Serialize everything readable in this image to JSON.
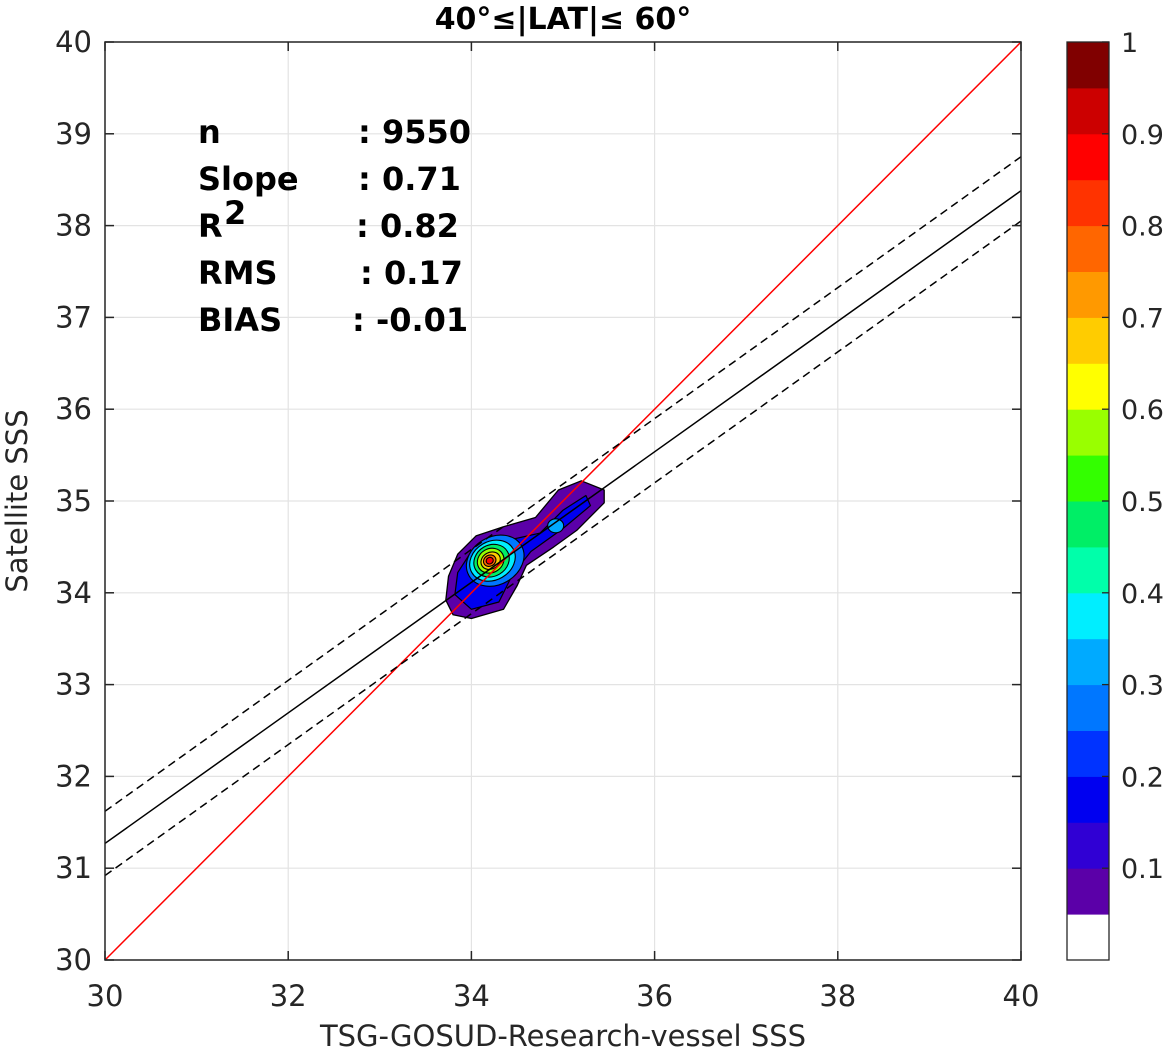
{
  "chart_data": {
    "type": "contour-scatter",
    "title": "40°≤|LAT|≤ 60°",
    "xlabel": "TSG-GOSUD-Research-vessel SSS",
    "ylabel": "Satellite SSS",
    "xlim": [
      30,
      40
    ],
    "ylim": [
      30,
      40
    ],
    "xticks": [
      "30",
      "32",
      "34",
      "36",
      "38",
      "40"
    ],
    "yticks": [
      "30",
      "31",
      "32",
      "33",
      "34",
      "35",
      "36",
      "37",
      "38",
      "39",
      "40"
    ],
    "grid": true,
    "stats": [
      {
        "label": "n",
        "value": ": 9550"
      },
      {
        "label": "Slope",
        "value": ": 0.71"
      },
      {
        "label": "R",
        "sup": "2",
        "value": ": 0.82"
      },
      {
        "label": "RMS",
        "value": ": 0.17"
      },
      {
        "label": "BIAS",
        "value": ": -0.01"
      }
    ],
    "lines": [
      {
        "name": "identity",
        "color": "#ff0000",
        "style": "solid",
        "x": [
          30,
          40
        ],
        "y": [
          30,
          40
        ]
      },
      {
        "name": "fit",
        "color": "#000000",
        "style": "solid",
        "x": [
          30,
          40
        ],
        "y": [
          31.27,
          38.38
        ]
      },
      {
        "name": "fit-upper",
        "color": "#000000",
        "style": "dashed",
        "x": [
          30,
          40
        ],
        "y": [
          31.62,
          38.75
        ]
      },
      {
        "name": "fit-lower",
        "color": "#000000",
        "style": "dashed",
        "x": [
          30,
          40
        ],
        "y": [
          30.92,
          38.05
        ]
      }
    ],
    "density_peak": {
      "x": 34.2,
      "y": 34.35
    },
    "colorbar": {
      "ticks": [
        "0.1",
        "0.2",
        "0.3",
        "0.4",
        "0.5",
        "0.6",
        "0.7",
        "0.8",
        "0.9",
        "1"
      ],
      "levels": [
        0.05,
        0.1,
        0.15,
        0.2,
        0.25,
        0.3,
        0.35,
        0.4,
        0.45,
        0.5,
        0.55,
        0.6,
        0.65,
        0.7,
        0.75,
        0.8,
        0.85,
        0.9,
        0.95,
        1.0
      ],
      "colors": [
        "#ffffff",
        "#5b00a8",
        "#3000d4",
        "#0000f0",
        "#0033ff",
        "#0077ff",
        "#00aaff",
        "#00eeff",
        "#00ffaa",
        "#00ee66",
        "#33ff00",
        "#99ff00",
        "#ffff00",
        "#ffcc00",
        "#ff9900",
        "#ff6600",
        "#ff3300",
        "#ff0000",
        "#cc0000",
        "#800000"
      ]
    }
  }
}
